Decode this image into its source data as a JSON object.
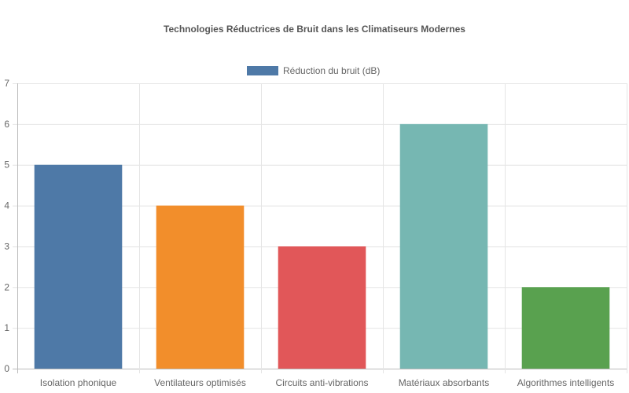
{
  "chart_data": {
    "type": "bar",
    "title": "Technologies Réductrices de Bruit dans les Climatiseurs Modernes",
    "categories": [
      "Isolation phonique",
      "Ventilateurs optimisés",
      "Circuits anti-vibrations",
      "Matériaux absorbants",
      "Algorithmes intelligents"
    ],
    "series": [
      {
        "name": "Réduction du bruit (dB)",
        "values": [
          5,
          4,
          3,
          6,
          2
        ],
        "colors": [
          "#4e79a7",
          "#f28e2b",
          "#e15759",
          "#76b7b2",
          "#59a14f"
        ]
      }
    ],
    "legend_color": "#4e79a7",
    "xlabel": "",
    "ylabel": "",
    "ylim": [
      0,
      7
    ],
    "yticks": [
      0,
      1,
      2,
      3,
      4,
      5,
      6,
      7
    ],
    "grid": true,
    "legend_position": "top"
  }
}
